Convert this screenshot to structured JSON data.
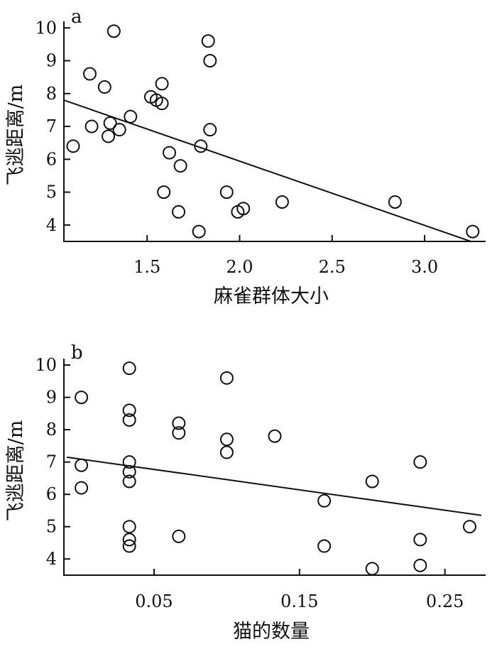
{
  "chart_data": [
    {
      "type": "scatter",
      "panel_label": "a",
      "xlabel": "麻雀群体大小",
      "ylabel": "飞逃距离/m",
      "xlim": [
        1.05,
        3.33
      ],
      "ylim": [
        3.5,
        10.2
      ],
      "xticks": [
        "1.5",
        "2.0",
        "2.5",
        "3.0"
      ],
      "yticks": [
        "4",
        "5",
        "6",
        "7",
        "8",
        "9",
        "10"
      ],
      "trendline": [
        [
          1.05,
          7.8
        ],
        [
          3.25,
          3.5
        ]
      ],
      "points": [
        [
          1.1,
          6.4
        ],
        [
          1.19,
          8.6
        ],
        [
          1.2,
          7.0
        ],
        [
          1.27,
          8.2
        ],
        [
          1.29,
          6.7
        ],
        [
          1.3,
          7.1
        ],
        [
          1.32,
          9.9
        ],
        [
          1.35,
          6.9
        ],
        [
          1.41,
          7.3
        ],
        [
          1.52,
          7.9
        ],
        [
          1.55,
          7.8
        ],
        [
          1.58,
          8.3
        ],
        [
          1.58,
          7.7
        ],
        [
          1.59,
          5.0
        ],
        [
          1.62,
          6.2
        ],
        [
          1.67,
          4.4
        ],
        [
          1.68,
          5.8
        ],
        [
          1.78,
          3.8
        ],
        [
          1.79,
          6.4
        ],
        [
          1.83,
          9.6
        ],
        [
          1.84,
          9.0
        ],
        [
          1.84,
          6.9
        ],
        [
          1.93,
          5.0
        ],
        [
          1.99,
          4.4
        ],
        [
          2.02,
          4.5
        ],
        [
          2.23,
          4.7
        ],
        [
          2.84,
          4.7
        ],
        [
          3.26,
          3.8
        ]
      ]
    },
    {
      "type": "scatter",
      "panel_label": "b",
      "xlabel": "猫的数量",
      "ylabel": "飞逃距离/m",
      "xlim": [
        -0.012,
        0.278
      ],
      "ylim": [
        3.5,
        10.2
      ],
      "xticks": [
        "0.05",
        "0.15",
        "0.25"
      ],
      "yticks": [
        "4",
        "5",
        "6",
        "7",
        "8",
        "9",
        "10"
      ],
      "trendline": [
        [
          -0.01,
          7.15
        ],
        [
          0.275,
          5.35
        ]
      ],
      "points": [
        [
          0.0,
          9.0
        ],
        [
          0.0,
          6.9
        ],
        [
          0.0,
          6.2
        ],
        [
          0.033,
          9.9
        ],
        [
          0.033,
          8.6
        ],
        [
          0.033,
          8.3
        ],
        [
          0.033,
          7.0
        ],
        [
          0.033,
          6.7
        ],
        [
          0.033,
          6.4
        ],
        [
          0.033,
          5.0
        ],
        [
          0.033,
          4.6
        ],
        [
          0.033,
          4.4
        ],
        [
          0.067,
          8.2
        ],
        [
          0.067,
          7.9
        ],
        [
          0.067,
          4.7
        ],
        [
          0.1,
          9.6
        ],
        [
          0.1,
          7.7
        ],
        [
          0.1,
          7.3
        ],
        [
          0.133,
          7.8
        ],
        [
          0.167,
          5.8
        ],
        [
          0.167,
          4.4
        ],
        [
          0.2,
          6.4
        ],
        [
          0.2,
          3.7
        ],
        [
          0.233,
          7.0
        ],
        [
          0.233,
          4.6
        ],
        [
          0.233,
          3.8
        ],
        [
          0.267,
          5.0
        ]
      ]
    }
  ]
}
